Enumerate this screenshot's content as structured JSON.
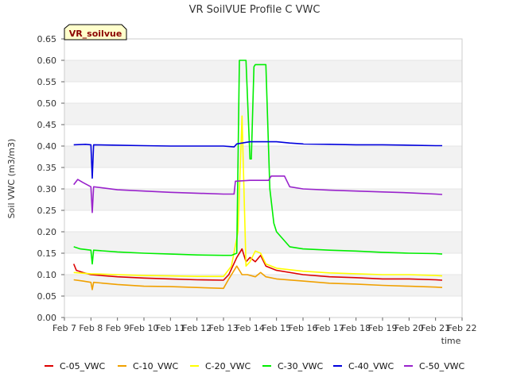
{
  "chart_data": {
    "type": "line",
    "title": "VR SoilVUE Profile C VWC",
    "xlabel": "time",
    "ylabel": "Soil VWC (m3/m3)",
    "badge": "VR_soilvue",
    "xlim": [
      7,
      22
    ],
    "ylim": [
      0,
      0.65
    ],
    "x_ticks": [
      7,
      8,
      9,
      10,
      11,
      12,
      13,
      14,
      15,
      16,
      17,
      18,
      19,
      20,
      21,
      22
    ],
    "x_tick_labels": [
      "Feb 7",
      "Feb 8",
      "Feb 9",
      "Feb 10",
      "Feb 11",
      "Feb 12",
      "Feb 13",
      "Feb 14",
      "Feb 15",
      "Feb 16",
      "Feb 17",
      "Feb 18",
      "Feb 19",
      "Feb 20",
      "Feb 21",
      "Feb 22"
    ],
    "y_ticks": [
      0,
      0.05,
      0.1,
      0.15,
      0.2,
      0.25,
      0.3,
      0.35,
      0.4,
      0.45,
      0.5,
      0.55,
      0.6,
      0.65
    ],
    "y_tick_labels": [
      "0.00",
      "0.05",
      "0.10",
      "0.15",
      "0.20",
      "0.25",
      "0.30",
      "0.35",
      "0.40",
      "0.45",
      "0.50",
      "0.55",
      "0.60",
      "0.65"
    ],
    "grid": "horizontal bands",
    "legend_position": "bottom",
    "series": [
      {
        "name": "C-05_VWC",
        "color": "#dd0000",
        "x": [
          7.35,
          7.45,
          7.7,
          8.0,
          9.0,
          10.0,
          11.0,
          12.0,
          13.0,
          13.2,
          13.5,
          13.7,
          13.85,
          14.0,
          14.2,
          14.4,
          14.6,
          15.0,
          16.0,
          17.0,
          18.0,
          19.0,
          20.0,
          21.0,
          21.25
        ],
        "y": [
          0.125,
          0.11,
          0.105,
          0.1,
          0.095,
          0.092,
          0.09,
          0.088,
          0.087,
          0.1,
          0.14,
          0.16,
          0.13,
          0.14,
          0.13,
          0.145,
          0.12,
          0.11,
          0.1,
          0.095,
          0.093,
          0.09,
          0.09,
          0.088,
          0.087
        ]
      },
      {
        "name": "C-10_VWC",
        "color": "#f0a000",
        "x": [
          7.35,
          7.7,
          8.0,
          8.05,
          8.1,
          9.0,
          10.0,
          11.0,
          12.0,
          13.0,
          13.2,
          13.5,
          13.7,
          13.9,
          14.2,
          14.4,
          14.6,
          15.0,
          16.0,
          17.0,
          18.0,
          19.0,
          20.0,
          21.0,
          21.25
        ],
        "y": [
          0.088,
          0.085,
          0.082,
          0.065,
          0.082,
          0.077,
          0.073,
          0.072,
          0.07,
          0.068,
          0.09,
          0.12,
          0.1,
          0.1,
          0.095,
          0.105,
          0.095,
          0.09,
          0.085,
          0.08,
          0.078,
          0.075,
          0.073,
          0.071,
          0.07
        ]
      },
      {
        "name": "C-20_VWC",
        "color": "#ffff00",
        "x": [
          7.35,
          8.0,
          9.0,
          10.0,
          11.0,
          12.0,
          13.0,
          13.3,
          13.55,
          13.7,
          13.85,
          14.0,
          14.2,
          14.4,
          14.6,
          15.0,
          16.0,
          17.0,
          18.0,
          19.0,
          20.0,
          21.0,
          21.25
        ],
        "y": [
          0.105,
          0.102,
          0.1,
          0.098,
          0.097,
          0.096,
          0.096,
          0.12,
          0.2,
          0.47,
          0.12,
          0.13,
          0.155,
          0.15,
          0.125,
          0.115,
          0.108,
          0.104,
          0.102,
          0.1,
          0.1,
          0.098,
          0.097
        ]
      },
      {
        "name": "C-30_VWC",
        "color": "#00ee00",
        "x": [
          7.35,
          7.6,
          8.0,
          8.05,
          8.1,
          9.0,
          10.0,
          11.0,
          12.0,
          13.0,
          13.3,
          13.5,
          13.6,
          13.85,
          14.0,
          14.05,
          14.15,
          14.2,
          14.6,
          14.75,
          14.9,
          15.0,
          15.5,
          16.0,
          17.0,
          18.0,
          19.0,
          20.0,
          21.0,
          21.25
        ],
        "y": [
          0.165,
          0.16,
          0.157,
          0.125,
          0.157,
          0.153,
          0.15,
          0.148,
          0.146,
          0.145,
          0.145,
          0.15,
          0.6,
          0.6,
          0.37,
          0.37,
          0.585,
          0.59,
          0.59,
          0.3,
          0.22,
          0.2,
          0.165,
          0.16,
          0.157,
          0.155,
          0.152,
          0.15,
          0.149,
          0.148
        ]
      },
      {
        "name": "C-40_VWC",
        "color": "#0000dd",
        "x": [
          7.35,
          7.8,
          8.0,
          8.05,
          8.1,
          9.0,
          10.0,
          11.0,
          12.0,
          13.0,
          13.4,
          13.5,
          14.0,
          14.5,
          15.0,
          15.5,
          16.0,
          17.0,
          18.0,
          19.0,
          20.0,
          21.0,
          21.25
        ],
        "y": [
          0.403,
          0.404,
          0.403,
          0.325,
          0.403,
          0.402,
          0.401,
          0.4,
          0.4,
          0.4,
          0.398,
          0.405,
          0.41,
          0.41,
          0.41,
          0.407,
          0.405,
          0.404,
          0.403,
          0.403,
          0.402,
          0.401,
          0.401
        ]
      },
      {
        "name": "C-50_VWC",
        "color": "#9922cc",
        "x": [
          7.35,
          7.5,
          7.7,
          8.0,
          8.05,
          8.1,
          9.0,
          10.0,
          11.0,
          12.0,
          13.0,
          13.4,
          13.45,
          14.0,
          14.7,
          14.8,
          15.3,
          15.5,
          16.0,
          17.0,
          18.0,
          19.0,
          20.0,
          21.0,
          21.25
        ],
        "y": [
          0.31,
          0.322,
          0.315,
          0.305,
          0.245,
          0.305,
          0.298,
          0.295,
          0.292,
          0.29,
          0.288,
          0.288,
          0.318,
          0.32,
          0.32,
          0.33,
          0.33,
          0.305,
          0.3,
          0.297,
          0.295,
          0.293,
          0.291,
          0.288,
          0.287
        ]
      }
    ]
  }
}
